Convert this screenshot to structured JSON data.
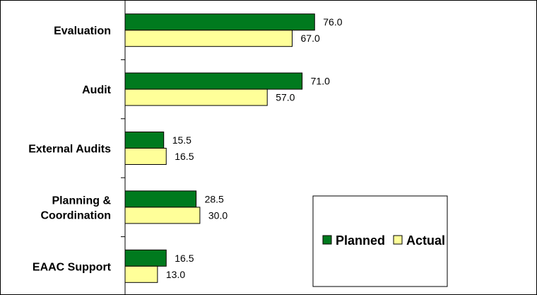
{
  "chart_data": {
    "type": "bar",
    "orientation": "horizontal",
    "categories": [
      "Evaluation",
      "Audit",
      "External Audits",
      "Planning & Coordination",
      "EAAC Support"
    ],
    "category_lines": [
      [
        "Evaluation"
      ],
      [
        "Audit"
      ],
      [
        "External Audits"
      ],
      [
        "Planning &",
        "Coordination"
      ],
      [
        "EAAC Support"
      ]
    ],
    "series": [
      {
        "name": "Planned",
        "values": [
          76.0,
          71.0,
          15.5,
          28.5,
          16.5
        ],
        "labels": [
          "76.0",
          "71.0",
          "15.5",
          "28.5",
          "16.5"
        ],
        "color": "#007a1e"
      },
      {
        "name": "Actual",
        "values": [
          67.0,
          57.0,
          16.5,
          30.0,
          13.0
        ],
        "labels": [
          "67.0",
          "57.0",
          "16.5",
          "30.0",
          "13.0"
        ],
        "color": "#ffff99"
      }
    ],
    "xlim": [
      0,
      165
    ],
    "grid": false,
    "legend": "bottom-right",
    "title": "",
    "xlabel": "",
    "ylabel": ""
  }
}
